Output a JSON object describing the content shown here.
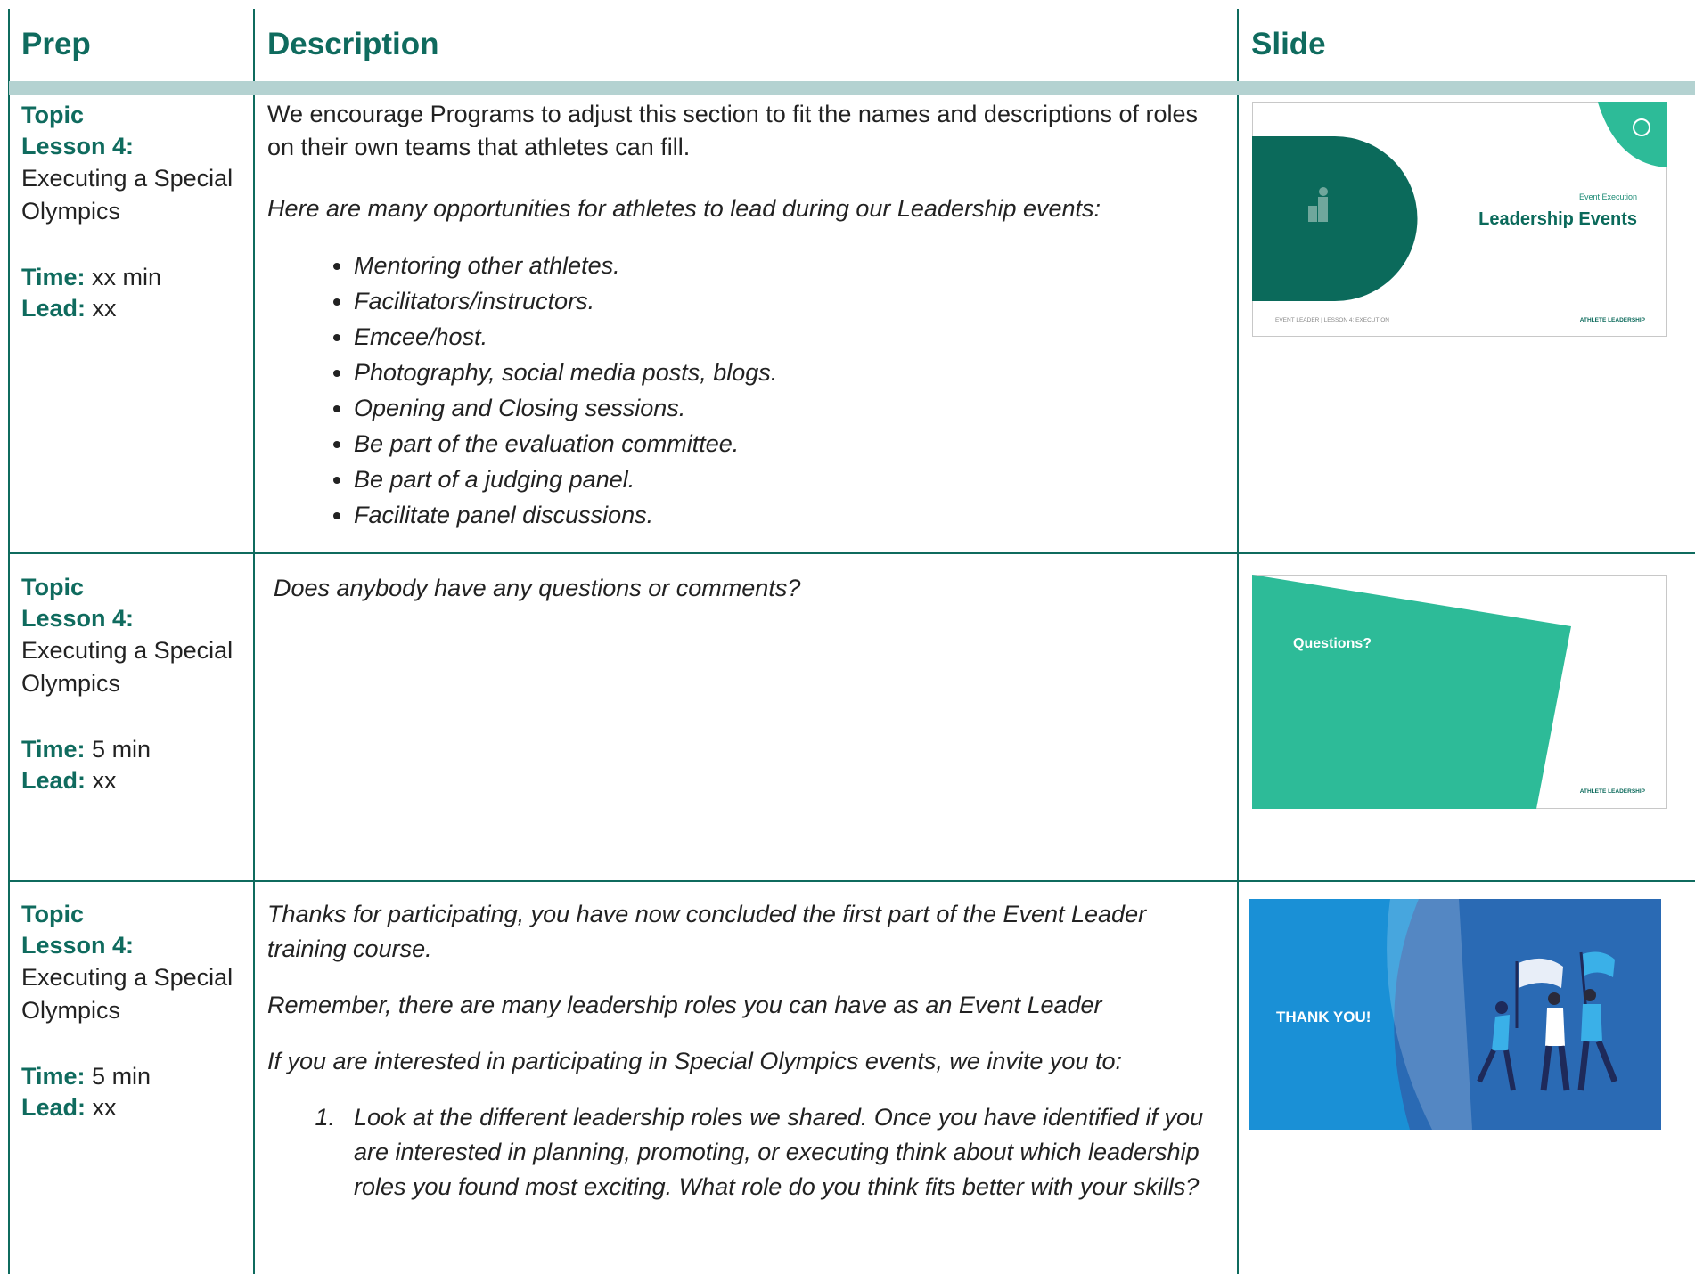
{
  "header": {
    "prep": "Prep",
    "description": "Description",
    "slide": "Slide"
  },
  "rows": [
    {
      "prep": {
        "topic": "Topic",
        "lesson": "Lesson 4:",
        "name": "Executing a Special Olympics",
        "time_label": "Time:",
        "time": "xx min",
        "lead_label": "Lead:",
        "lead": "xx"
      },
      "description": {
        "paragraphs": [
          "We encourage Programs to adjust this section to fit the names and descriptions of roles on their own teams that athletes can fill.",
          "Here are many opportunities for athletes to lead during our Leadership events:"
        ],
        "bullets": [
          "Mentoring other athletes.",
          "Facilitators/instructors.",
          "Emcee/host.",
          "Photography, social media posts, blogs.",
          "Opening and Closing sessions.",
          "Be part of the evaluation committee.",
          "Be part of a judging panel.",
          "Facilitate panel discussions."
        ]
      },
      "slide": {
        "kicker": "Event Execution",
        "title": "Leadership Events",
        "footer_left": "EVENT LEADER | LESSON 4: EXECUTION",
        "footer_right": "ATHLETE LEADERSHIP"
      }
    },
    {
      "prep": {
        "topic": "Topic",
        "lesson": "Lesson 4:",
        "name": "Executing a Special Olympics",
        "time_label": "Time:",
        "time": "5 min",
        "lead_label": "Lead:",
        "lead": "xx"
      },
      "description": {
        "paragraphs": [
          "Does anybody have any questions or comments?"
        ]
      },
      "slide": {
        "title": "Questions?",
        "footer_right": "ATHLETE LEADERSHIP"
      }
    },
    {
      "prep": {
        "topic": "Topic",
        "lesson": "Lesson 4:",
        "name": "Executing a Special Olympics",
        "time_label": "Time:",
        "time": "5 min",
        "lead_label": "Lead:",
        "lead": "xx"
      },
      "description": {
        "paragraphs": [
          "Thanks for participating, you have now concluded the first part of the Event Leader training course.",
          "Remember, there are many leadership roles you can have as an Event Leader",
          "If you are interested in participating in Special Olympics events, we invite you to:"
        ],
        "numbered": [
          {
            "number": "1.",
            "text": "Look at the different leadership roles we shared. Once you have identified if you are interested in planning, promoting, or executing think about which leadership roles you found most exciting. What role do you think fits better with your skills?"
          }
        ]
      },
      "slide": {
        "title": "THANK YOU!"
      }
    }
  ]
}
